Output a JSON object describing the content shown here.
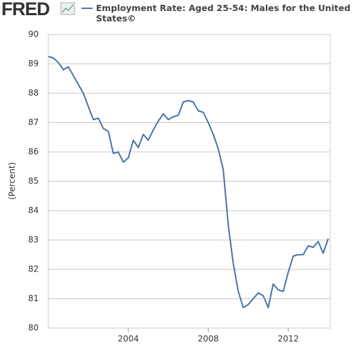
{
  "logo": "FRED",
  "chart_data": {
    "type": "line",
    "ylabel": "(Percent)",
    "x": [
      2000.0,
      2000.25,
      2000.5,
      2000.75,
      2001.0,
      2001.25,
      2001.5,
      2001.75,
      2002.0,
      2002.25,
      2002.5,
      2002.75,
      2003.0,
      2003.25,
      2003.5,
      2003.75,
      2004.0,
      2004.25,
      2004.5,
      2004.75,
      2005.0,
      2005.25,
      2005.5,
      2005.75,
      2006.0,
      2006.25,
      2006.5,
      2006.75,
      2007.0,
      2007.25,
      2007.5,
      2007.75,
      2008.0,
      2008.25,
      2008.5,
      2008.75,
      2009.0,
      2009.25,
      2009.5,
      2009.75,
      2010.0,
      2010.25,
      2010.5,
      2010.75,
      2011.0,
      2011.25,
      2011.5,
      2011.75,
      2012.0,
      2012.25,
      2012.5,
      2012.75,
      2013.0,
      2013.25,
      2013.5,
      2013.75,
      2014.0
    ],
    "series": [
      {
        "name": "Employment Rate: Aged 25-54: Males for the United States©",
        "color": "#4572a7",
        "values": [
          89.25,
          89.2,
          89.05,
          88.8,
          88.9,
          88.6,
          88.3,
          88.0,
          87.55,
          87.1,
          87.15,
          86.8,
          86.7,
          85.95,
          86.0,
          85.65,
          85.8,
          86.4,
          86.15,
          86.6,
          86.4,
          86.75,
          87.05,
          87.3,
          87.1,
          87.2,
          87.25,
          87.7,
          87.75,
          87.7,
          87.4,
          87.35,
          87.0,
          86.6,
          86.1,
          85.4,
          83.5,
          82.2,
          81.25,
          80.7,
          80.8,
          81.0,
          81.2,
          81.1,
          80.7,
          81.5,
          81.3,
          81.25,
          81.9,
          82.45,
          82.5,
          82.5,
          82.8,
          82.75,
          82.95,
          82.55,
          83.05
        ]
      }
    ],
    "xlim": [
      2000,
      2014.1
    ],
    "xticks": [
      2004,
      2008,
      2012
    ],
    "ylim": [
      80,
      90
    ],
    "yticks": [
      80,
      81,
      82,
      83,
      84,
      85,
      86,
      87,
      88,
      89,
      90
    ],
    "grid": true
  }
}
